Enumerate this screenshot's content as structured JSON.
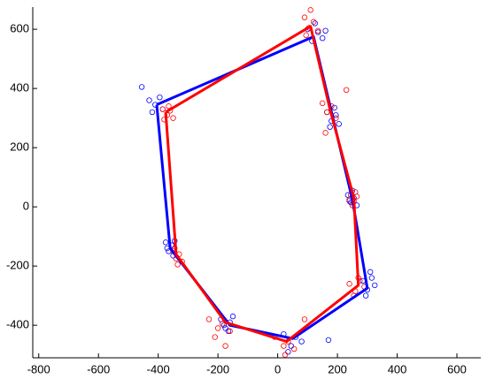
{
  "chart_data": {
    "type": "line",
    "xlim": [
      -820,
      680
    ],
    "ylim": [
      -510,
      675
    ],
    "xticks": [
      -800,
      -600,
      -400,
      -200,
      0,
      200,
      400,
      600
    ],
    "yticks": [
      -400,
      -200,
      0,
      200,
      400,
      600
    ],
    "series": [
      {
        "kind": "scatter",
        "color": "#0000ff",
        "x": [
          -455,
          -430,
          -410,
          -395,
          -385,
          -420,
          100,
          115,
          135,
          150,
          125,
          160,
          165,
          180,
          195,
          205,
          175,
          190,
          235,
          245,
          255,
          265,
          250,
          240,
          285,
          300,
          315,
          325,
          295,
          310,
          20,
          45,
          60,
          80,
          35,
          170,
          -190,
          -175,
          -160,
          -150,
          -180,
          -165,
          -375,
          -365,
          -355,
          -350,
          -370,
          -345
        ],
        "y": [
          405,
          360,
          345,
          370,
          330,
          320,
          600,
          560,
          590,
          570,
          620,
          595,
          320,
          290,
          310,
          280,
          270,
          335,
          40,
          15,
          30,
          5,
          55,
          20,
          -250,
          -280,
          -240,
          -265,
          -300,
          -220,
          -430,
          -470,
          -440,
          -455,
          -490,
          -450,
          -380,
          -410,
          -390,
          -370,
          -400,
          -420,
          -120,
          -150,
          -130,
          -165,
          -140,
          -115
        ]
      },
      {
        "kind": "scatter",
        "color": "#ff0000",
        "x": [
          -385,
          -370,
          -360,
          -350,
          -380,
          -365,
          90,
          105,
          120,
          135,
          110,
          95,
          150,
          165,
          180,
          195,
          160,
          230,
          245,
          255,
          265,
          250,
          260,
          240,
          240,
          260,
          275,
          290,
          255,
          270,
          -10,
          20,
          35,
          55,
          25,
          90,
          -230,
          -200,
          -185,
          -160,
          -210,
          -175,
          -350,
          -340,
          -330,
          -320,
          -345,
          -335
        ],
        "y": [
          330,
          310,
          325,
          300,
          295,
          340,
          640,
          605,
          625,
          595,
          665,
          580,
          350,
          320,
          340,
          300,
          250,
          395,
          40,
          20,
          35,
          5,
          50,
          25,
          -260,
          -285,
          -250,
          -270,
          -300,
          -240,
          -440,
          -470,
          -455,
          -480,
          -500,
          -380,
          -380,
          -410,
          -395,
          -420,
          -440,
          -470,
          -150,
          -175,
          -160,
          -185,
          -140,
          -195
        ]
      },
      {
        "kind": "line",
        "color": "#0000ff",
        "x": [
          -405,
          120,
          185,
          250,
          300,
          50,
          -160,
          -360,
          -405
        ],
        "y": [
          345,
          575,
          300,
          25,
          -275,
          -445,
          -400,
          -140,
          345
        ]
      },
      {
        "kind": "line",
        "color": "#ff0000",
        "x": [
          -375,
          110,
          175,
          255,
          270,
          30,
          -175,
          -340,
          -375
        ],
        "y": [
          320,
          610,
          330,
          30,
          -265,
          -455,
          -390,
          -160,
          320
        ]
      }
    ]
  }
}
